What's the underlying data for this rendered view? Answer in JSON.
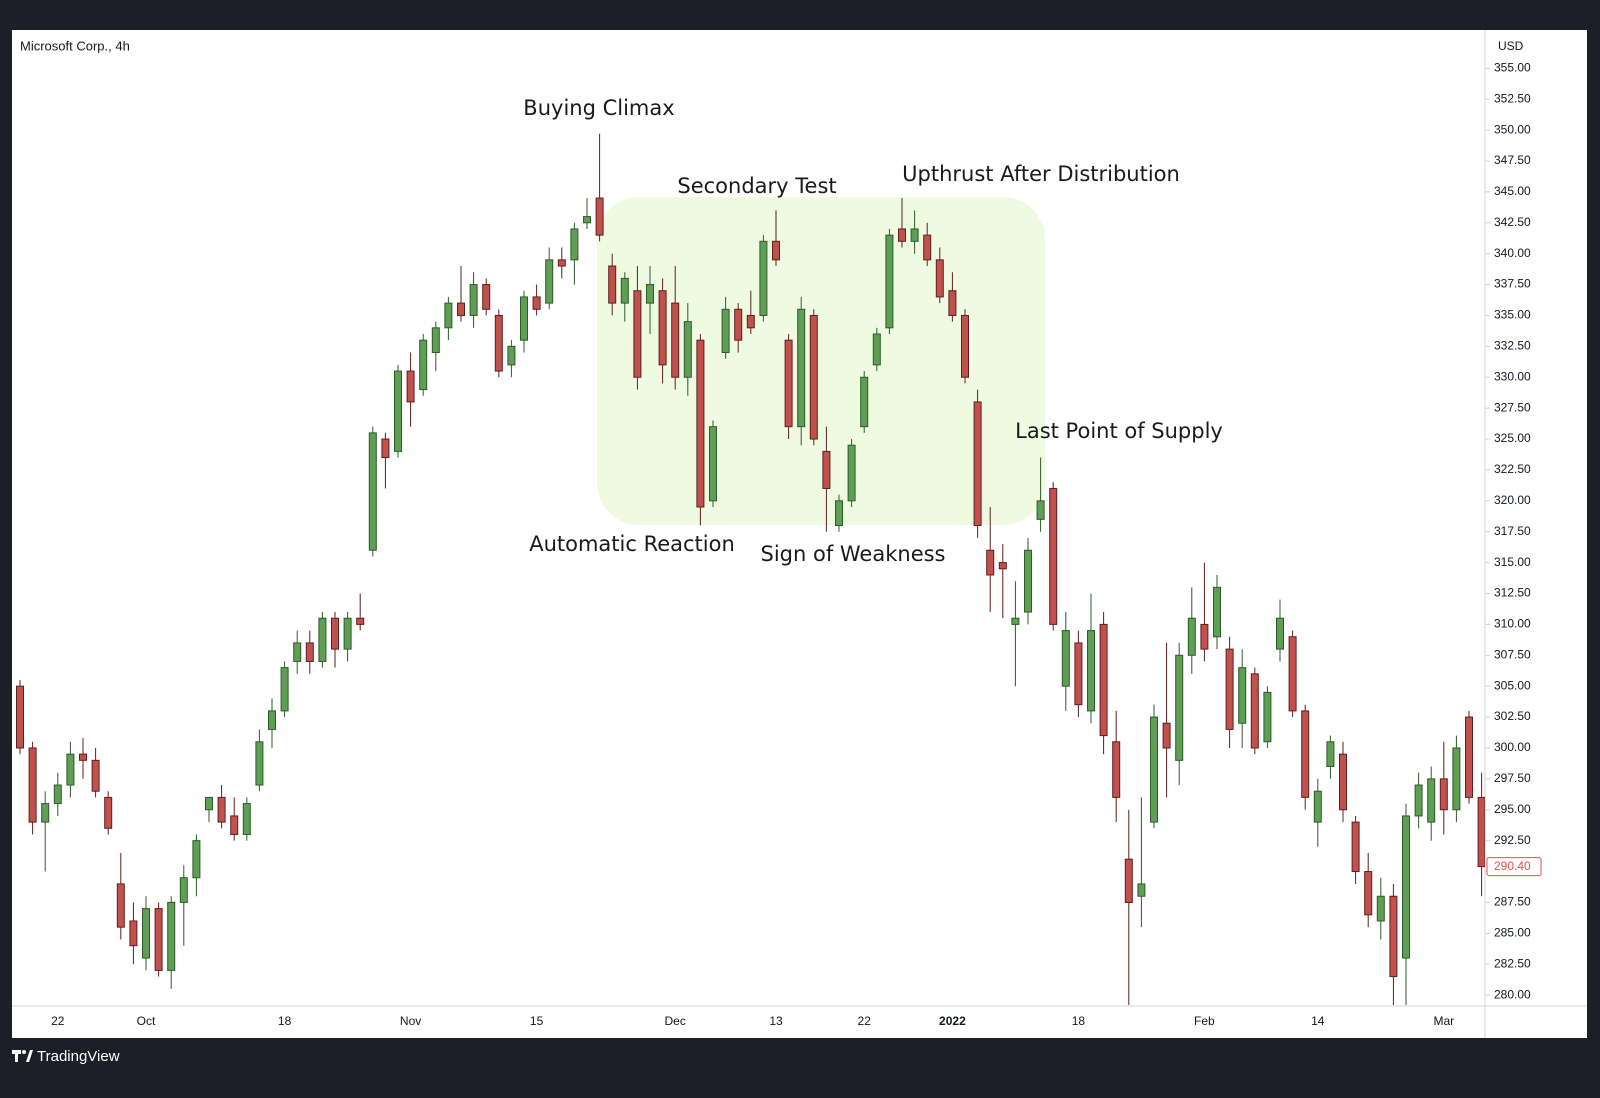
{
  "chart_data": {
    "type": "candlestick",
    "title": "Microsoft Corp., 4h",
    "currency": "USD",
    "branding": "TradingView",
    "up_color": "#5f9e55",
    "up_stroke": "#2f5a2a",
    "down_color": "#c2504c",
    "down_stroke": "#5c201e",
    "grid": false,
    "annotations": [
      "Buying Climax",
      "Secondary Test",
      "Upthrust After Distribution",
      "Last Point of Supply",
      "Automatic Reaction",
      "Sign of Weakness"
    ],
    "last_price": {
      "value": 290.4,
      "label": "290.40"
    },
    "ylim": [
      279.2,
      358.1
    ],
    "yticks": [
      {
        "value": 280,
        "label": "280.00"
      },
      {
        "value": 282.5,
        "label": "282.50"
      },
      {
        "value": 285,
        "label": "285.00"
      },
      {
        "value": 287.5,
        "label": "287.50"
      },
      {
        "value": 290,
        "label": "290.00"
      },
      {
        "value": 292.5,
        "label": "292.50"
      },
      {
        "value": 295,
        "label": "295.00"
      },
      {
        "value": 297.5,
        "label": "297.50"
      },
      {
        "value": 300,
        "label": "300.00"
      },
      {
        "value": 302.5,
        "label": "302.50"
      },
      {
        "value": 305,
        "label": "305.00"
      },
      {
        "value": 307.5,
        "label": "307.50"
      },
      {
        "value": 310,
        "label": "310.00"
      },
      {
        "value": 312.5,
        "label": "312.50"
      },
      {
        "value": 315,
        "label": "315.00"
      },
      {
        "value": 317.5,
        "label": "317.50"
      },
      {
        "value": 320,
        "label": "320.00"
      },
      {
        "value": 322.5,
        "label": "322.50"
      },
      {
        "value": 325,
        "label": "325.00"
      },
      {
        "value": 327.5,
        "label": "327.50"
      },
      {
        "value": 330,
        "label": "330.00"
      },
      {
        "value": 332.5,
        "label": "332.50"
      },
      {
        "value": 335,
        "label": "335.00"
      },
      {
        "value": 337.5,
        "label": "337.50"
      },
      {
        "value": 340,
        "label": "340.00"
      },
      {
        "value": 342.5,
        "label": "342.50"
      },
      {
        "value": 345,
        "label": "345.00"
      },
      {
        "value": 347.5,
        "label": "347.50"
      },
      {
        "value": 350,
        "label": "350.00"
      },
      {
        "value": 352.5,
        "label": "352.50"
      },
      {
        "value": 355,
        "label": "355.00"
      }
    ],
    "categories": [
      null,
      null,
      null,
      "22",
      null,
      null,
      null,
      null,
      null,
      null,
      "Oct",
      null,
      null,
      null,
      null,
      null,
      null,
      null,
      null,
      null,
      null,
      "18",
      null,
      null,
      null,
      null,
      null,
      null,
      null,
      null,
      null,
      "Nov",
      null,
      null,
      null,
      null,
      null,
      null,
      null,
      null,
      null,
      "15",
      null,
      null,
      null,
      null,
      null,
      null,
      null,
      null,
      null,
      null,
      "Dec",
      null,
      null,
      null,
      null,
      null,
      null,
      null,
      "13",
      null,
      null,
      null,
      null,
      null,
      null,
      "22",
      null,
      null,
      null,
      null,
      null,
      null,
      "2022",
      null,
      null,
      null,
      null,
      null,
      null,
      null,
      null,
      null,
      "18",
      null,
      null,
      null,
      null,
      null,
      null,
      null,
      null,
      null,
      "Feb",
      null,
      null,
      null,
      null,
      null,
      null,
      null,
      null,
      "14",
      null,
      null,
      null,
      null,
      null,
      null,
      null,
      null,
      null,
      "Mar",
      null,
      null,
      null
    ],
    "ohlc": [
      [
        305,
        305.5,
        299.5,
        300
      ],
      [
        300,
        300.5,
        293,
        294
      ],
      [
        294,
        296.5,
        290,
        295.5
      ],
      [
        295.5,
        298,
        294.5,
        297
      ],
      [
        297,
        300.5,
        296,
        299.5
      ],
      [
        299.5,
        300.8,
        297.5,
        299
      ],
      [
        299,
        300,
        296,
        296.5
      ],
      [
        296,
        296.5,
        293,
        293.5
      ],
      [
        289,
        291.5,
        284.5,
        285.5
      ],
      [
        286,
        287.5,
        282.5,
        284
      ],
      [
        283,
        288,
        282,
        287
      ],
      [
        287,
        287.5,
        281.5,
        282
      ],
      [
        282,
        288,
        280.5,
        287.5
      ],
      [
        287.5,
        290.5,
        284,
        289.5
      ],
      [
        289.5,
        293,
        288,
        292.5
      ],
      [
        295,
        296,
        294,
        296
      ],
      [
        296,
        297,
        293.5,
        294
      ],
      [
        294.5,
        296,
        292.5,
        293
      ],
      [
        293,
        296,
        292.5,
        295.5
      ],
      [
        297,
        301.5,
        296.5,
        300.5
      ],
      [
        301.5,
        304,
        300,
        303
      ],
      [
        303,
        307,
        302.5,
        306.5
      ],
      [
        307,
        309.5,
        306,
        308.5
      ],
      [
        308.5,
        309.5,
        306,
        307
      ],
      [
        307,
        311,
        306.5,
        310.5
      ],
      [
        310.5,
        311,
        306.5,
        308
      ],
      [
        308,
        311,
        307,
        310.5
      ],
      [
        310.5,
        312.5,
        309.5,
        310
      ],
      [
        316,
        326,
        315.5,
        325.5
      ],
      [
        325,
        325.5,
        321,
        323.5
      ],
      [
        324,
        331,
        323.5,
        330.5
      ],
      [
        330.5,
        332,
        326,
        328
      ],
      [
        329,
        333.5,
        328.5,
        333
      ],
      [
        332,
        334.5,
        330.5,
        334
      ],
      [
        334,
        336.5,
        333,
        336
      ],
      [
        336,
        339,
        334.5,
        335
      ],
      [
        335,
        338.5,
        334,
        337.5
      ],
      [
        337.5,
        338,
        335,
        335.5
      ],
      [
        335,
        335.5,
        330,
        330.5
      ],
      [
        331,
        333,
        330,
        332.5
      ],
      [
        333,
        337,
        332,
        336.5
      ],
      [
        336.5,
        337.5,
        335,
        335.5
      ],
      [
        336,
        340.5,
        335.5,
        339.5
      ],
      [
        339.5,
        340.5,
        338,
        339
      ],
      [
        339.5,
        342.5,
        337.5,
        342
      ],
      [
        342.5,
        344.5,
        342,
        343
      ],
      [
        344.5,
        349.7,
        341,
        341.5
      ],
      [
        339,
        340,
        335,
        336
      ],
      [
        336,
        338.5,
        334.5,
        338
      ],
      [
        337,
        339,
        329,
        330
      ],
      [
        336,
        339,
        333.5,
        337.5
      ],
      [
        337,
        338,
        329.5,
        331
      ],
      [
        336,
        339,
        329,
        330
      ],
      [
        330,
        336,
        328.5,
        334.5
      ],
      [
        333,
        333.5,
        318,
        319.5
      ],
      [
        320,
        326.5,
        319.5,
        326
      ],
      [
        332,
        336.5,
        331.5,
        335.5
      ],
      [
        335.5,
        336,
        332,
        333
      ],
      [
        335,
        337,
        333.5,
        334
      ],
      [
        335,
        341.5,
        334.5,
        341
      ],
      [
        341,
        343.5,
        339,
        339.5
      ],
      [
        333,
        333.5,
        325,
        326
      ],
      [
        326,
        336.5,
        324.5,
        335.5
      ],
      [
        335,
        335.5,
        324.5,
        325
      ],
      [
        324,
        326,
        317.5,
        321
      ],
      [
        318,
        320.5,
        317.5,
        320
      ],
      [
        320,
        325,
        319.5,
        324.5
      ],
      [
        326,
        330.5,
        325.5,
        330
      ],
      [
        331,
        334,
        330.5,
        333.5
      ],
      [
        334,
        342,
        333.5,
        341.5
      ],
      [
        342,
        344.5,
        340.5,
        341
      ],
      [
        341,
        343.5,
        340,
        342
      ],
      [
        341.5,
        342.5,
        339,
        339.5
      ],
      [
        339.5,
        340.5,
        336,
        336.5
      ],
      [
        337,
        338.5,
        334.5,
        335
      ],
      [
        335,
        335.5,
        329.5,
        330
      ],
      [
        328,
        329,
        317,
        318
      ],
      [
        316,
        319.5,
        311,
        314
      ],
      [
        315,
        316.5,
        310.5,
        314.5
      ],
      [
        310,
        313.5,
        305,
        310.5
      ],
      [
        311,
        317,
        310,
        316
      ],
      [
        318.5,
        323.5,
        317.5,
        320
      ],
      [
        321,
        321.5,
        309.5,
        310
      ],
      [
        305,
        311,
        303,
        309.5
      ],
      [
        308.5,
        309.5,
        302.5,
        303.5
      ],
      [
        303,
        312.5,
        302,
        309.5
      ],
      [
        310,
        311,
        299.5,
        301
      ],
      [
        300.5,
        303,
        294,
        296
      ],
      [
        291,
        295,
        276.5,
        287.5
      ],
      [
        288,
        296,
        285.5,
        289
      ],
      [
        294,
        303.5,
        293.5,
        302.5
      ],
      [
        302,
        308.5,
        296,
        300
      ],
      [
        299,
        308.5,
        297,
        307.5
      ],
      [
        307.5,
        313,
        306,
        310.5
      ],
      [
        310,
        315,
        307,
        308
      ],
      [
        309,
        314,
        308,
        313
      ],
      [
        308,
        309,
        300,
        301.5
      ],
      [
        302,
        308,
        300,
        306.5
      ],
      [
        306,
        306.5,
        299.5,
        300
      ],
      [
        300.5,
        305,
        300,
        304.5
      ],
      [
        308,
        312,
        307,
        310.5
      ],
      [
        309,
        309.5,
        302.5,
        303
      ],
      [
        303,
        303.5,
        295,
        296
      ],
      [
        294,
        297.5,
        292,
        296.5
      ],
      [
        298.5,
        301,
        297.5,
        300.5
      ],
      [
        299.5,
        300.5,
        294,
        295
      ],
      [
        294,
        294.5,
        289,
        290
      ],
      [
        290,
        291.5,
        285.5,
        286.5
      ],
      [
        286,
        289.5,
        284.5,
        288
      ],
      [
        288,
        289,
        279,
        281.5
      ],
      [
        283,
        295.5,
        279,
        294.5
      ],
      [
        294.5,
        298,
        293.5,
        297
      ],
      [
        294,
        298.5,
        292.5,
        297.5
      ],
      [
        297.5,
        300.5,
        293,
        295
      ],
      [
        295,
        301,
        294,
        300
      ],
      [
        302.5,
        303,
        295.5,
        296
      ],
      [
        296,
        298,
        288,
        290.4
      ]
    ]
  }
}
